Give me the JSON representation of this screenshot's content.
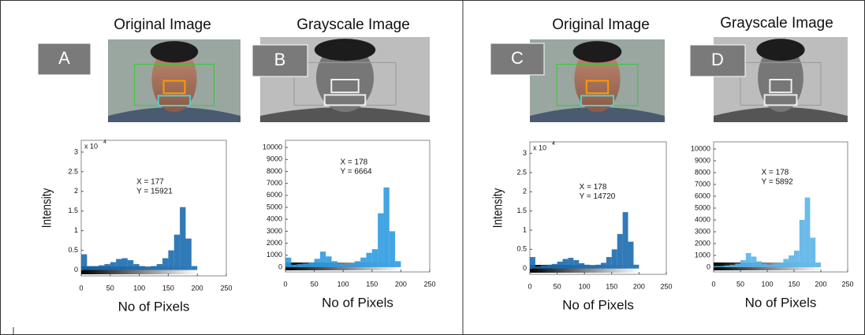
{
  "chart_data": [
    {
      "type": "histogram",
      "title": "Original Image",
      "panel": "A",
      "ylabel": "Intensity",
      "xlabel": "No of Pixels",
      "multiplier": "x 10",
      "multiplier_exponent": "4",
      "color": "#1b6bb0",
      "bins": [
        0,
        10,
        20,
        30,
        40,
        50,
        60,
        70,
        80,
        90,
        100,
        110,
        120,
        130,
        140,
        150,
        160,
        170,
        180,
        190,
        200,
        210,
        220,
        230,
        240,
        250
      ],
      "values": [
        0.4,
        0.1,
        0.1,
        0.12,
        0.15,
        0.2,
        0.28,
        0.3,
        0.25,
        0.15,
        0.1,
        0.08,
        0.1,
        0.15,
        0.3,
        0.5,
        0.9,
        1.6,
        0.8,
        0.1,
        0,
        0,
        0,
        0,
        0
      ],
      "xlim": [
        0,
        250
      ],
      "xticks": [
        0,
        50,
        100,
        150,
        200,
        250
      ],
      "ylim": [
        -0.15,
        3.3
      ],
      "yticks": [
        0,
        0.5,
        1,
        1.5,
        2,
        2.5,
        3
      ],
      "annotation": [
        "X = 177",
        "Y = 15921"
      ]
    },
    {
      "type": "histogram",
      "title": "Grayscale Image",
      "panel": "B",
      "xlabel": "No of Pixels",
      "color": "#2f9be0",
      "bins": [
        0,
        10,
        20,
        30,
        40,
        50,
        60,
        70,
        80,
        90,
        100,
        110,
        120,
        130,
        140,
        150,
        160,
        170,
        180,
        190,
        200,
        210,
        220,
        230,
        240,
        250
      ],
      "values": [
        800,
        200,
        250,
        300,
        400,
        700,
        1300,
        900,
        500,
        300,
        200,
        300,
        500,
        800,
        1200,
        1500,
        4500,
        6664,
        3000,
        500,
        0,
        0,
        0,
        0,
        0
      ],
      "xlim": [
        0,
        250
      ],
      "xticks": [
        0,
        50,
        100,
        150,
        200,
        250
      ],
      "ylim": [
        -400,
        10600
      ],
      "yticks": [
        0,
        1000,
        2000,
        3000,
        4000,
        5000,
        6000,
        7000,
        8000,
        9000,
        10000
      ],
      "annotation": [
        "X = 178",
        "Y = 6664"
      ]
    },
    {
      "type": "histogram",
      "title": "Original Image",
      "panel": "C",
      "ylabel": "Intensity",
      "xlabel": "No of Pixels",
      "multiplier": "x 10",
      "multiplier_exponent": "4",
      "color": "#1b6bb0",
      "bins": [
        0,
        10,
        20,
        30,
        40,
        50,
        60,
        70,
        80,
        90,
        100,
        110,
        120,
        130,
        140,
        150,
        160,
        170,
        180,
        190,
        200,
        210,
        220,
        230,
        240,
        250
      ],
      "values": [
        0.3,
        0.05,
        0.08,
        0.1,
        0.12,
        0.18,
        0.25,
        0.28,
        0.22,
        0.14,
        0.1,
        0.08,
        0.1,
        0.15,
        0.3,
        0.5,
        0.9,
        1.47,
        0.7,
        0.1,
        0,
        0,
        0,
        0,
        0
      ],
      "xlim": [
        0,
        250
      ],
      "xticks": [
        0,
        50,
        100,
        150,
        200,
        250
      ],
      "ylim": [
        -0.15,
        3.3
      ],
      "yticks": [
        0,
        0.5,
        1,
        1.5,
        2,
        2.5,
        3
      ],
      "annotation": [
        "X = 178",
        "Y = 14720"
      ]
    },
    {
      "type": "histogram",
      "title": "Grayscale Image",
      "panel": "D",
      "xlabel": "No of Pixels",
      "color": "#5ab4e8",
      "bins": [
        0,
        10,
        20,
        30,
        40,
        50,
        60,
        70,
        80,
        90,
        100,
        110,
        120,
        130,
        140,
        150,
        160,
        170,
        180,
        190,
        200,
        210,
        220,
        230,
        240,
        250
      ],
      "values": [
        100,
        100,
        150,
        200,
        300,
        600,
        1200,
        900,
        500,
        300,
        200,
        300,
        400,
        700,
        1000,
        1400,
        4000,
        5892,
        2500,
        400,
        0,
        0,
        0,
        0,
        0
      ],
      "xlim": [
        0,
        250
      ],
      "xticks": [
        0,
        50,
        100,
        150,
        200,
        250
      ],
      "ylim": [
        -400,
        10600
      ],
      "yticks": [
        0,
        1000,
        2000,
        3000,
        4000,
        5000,
        6000,
        7000,
        8000,
        9000,
        10000
      ],
      "annotation": [
        "X = 178",
        "Y = 5892"
      ]
    }
  ]
}
